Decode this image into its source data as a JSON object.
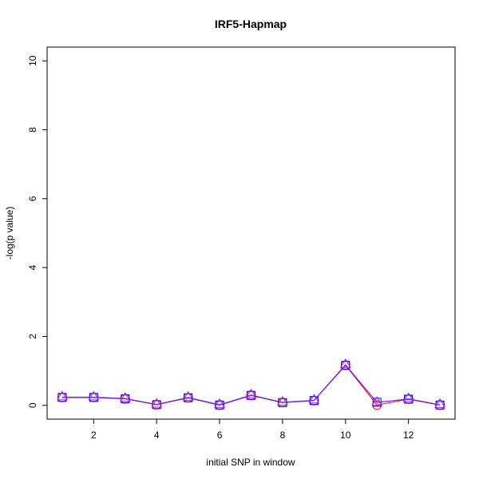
{
  "chart_data": {
    "type": "line",
    "title": "IRF5-Hapmap",
    "xlabel": "initial SNP in window",
    "ylabel": "-log(p value)",
    "x": [
      1,
      2,
      3,
      4,
      5,
      6,
      7,
      8,
      9,
      10,
      11,
      12,
      13
    ],
    "xlim": [
      0.52,
      13.48
    ],
    "ylim": [
      -0.4,
      10.4
    ],
    "xticks": [
      2,
      4,
      6,
      8,
      10,
      12
    ],
    "yticks": [
      0,
      2,
      4,
      6,
      8,
      10
    ],
    "grid": false,
    "series": [
      {
        "marker": "circle",
        "color": "#ff0000",
        "values": [
          0.23,
          0.23,
          0.19,
          0.02,
          0.22,
          0.01,
          0.29,
          0.08,
          0.14,
          1.17,
          0.01,
          0.18,
          0.01
        ]
      },
      {
        "marker": "square",
        "color": "#0000ff",
        "values": [
          0.23,
          0.23,
          0.19,
          0.02,
          0.22,
          0.01,
          0.29,
          0.08,
          0.14,
          1.16,
          0.09,
          0.18,
          0.01
        ]
      },
      {
        "marker": "triangle",
        "color": "#a020f0",
        "values": [
          0.24,
          0.24,
          0.2,
          0.03,
          0.23,
          0.02,
          0.3,
          0.09,
          0.15,
          1.18,
          0.08,
          0.19,
          0.02
        ]
      }
    ]
  }
}
